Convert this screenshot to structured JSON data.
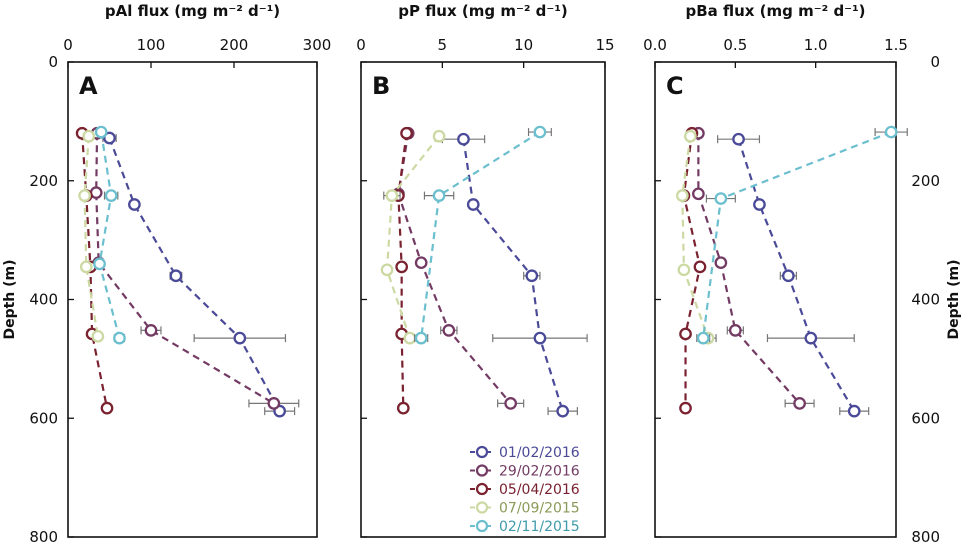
{
  "chart_data": {
    "type": "scatter",
    "y_axis": {
      "title": "Depth (m)",
      "ylim": [
        0,
        800
      ],
      "ticks": [
        0,
        200,
        400,
        600,
        800
      ],
      "tick_labels": [
        "0",
        "200",
        "400",
        "600",
        "800"
      ],
      "inverted": true
    },
    "panels": [
      {
        "letter": "A",
        "title": "pAl flux",
        "units": "(mg m⁻² d⁻¹)",
        "xlim": [
          0,
          300
        ],
        "x_ticks": [
          0,
          100,
          200,
          300
        ],
        "x_tick_labels": [
          "0",
          "100",
          "200",
          "300"
        ],
        "series": [
          {
            "name": "01/02/2016",
            "color": "#4a4a98",
            "points": [
              {
                "x": 50,
                "y": 128,
                "err": 8
              },
              {
                "x": 80,
                "y": 240,
                "err": 0
              },
              {
                "x": 130,
                "y": 360,
                "err": 7
              },
              {
                "x": 207,
                "y": 465,
                "err": 55
              },
              {
                "x": 255,
                "y": 588,
                "err": 18
              }
            ]
          },
          {
            "name": "29/02/2016",
            "color": "#733a63",
            "points": [
              {
                "x": 35,
                "y": 120,
                "err": 0
              },
              {
                "x": 34,
                "y": 220,
                "err": 0
              },
              {
                "x": 37,
                "y": 338,
                "err": 0
              },
              {
                "x": 100,
                "y": 452,
                "err": 12
              },
              {
                "x": 248,
                "y": 575,
                "err": 30
              }
            ]
          },
          {
            "name": "05/04/2016",
            "color": "#7a2230",
            "points": [
              {
                "x": 17,
                "y": 120,
                "err": 0
              },
              {
                "x": 22,
                "y": 225,
                "err": 0
              },
              {
                "x": 27,
                "y": 345,
                "err": 0
              },
              {
                "x": 29,
                "y": 458,
                "err": 0
              },
              {
                "x": 47,
                "y": 583,
                "err": 0
              }
            ]
          },
          {
            "name": "07/09/2015",
            "color": "#ccd9a3",
            "points": [
              {
                "x": 25,
                "y": 125,
                "err": 0
              },
              {
                "x": 20,
                "y": 225,
                "err": 0
              },
              {
                "x": 22,
                "y": 345,
                "err": 0
              },
              {
                "x": 36,
                "y": 462,
                "err": 5
              }
            ]
          },
          {
            "name": "02/11/2015",
            "color": "#6bbfce",
            "points": [
              {
                "x": 40,
                "y": 118,
                "err": 0
              },
              {
                "x": 52,
                "y": 225,
                "err": 8
              },
              {
                "x": 38,
                "y": 340,
                "err": 0
              },
              {
                "x": 62,
                "y": 465,
                "err": 6
              }
            ]
          }
        ]
      },
      {
        "letter": "B",
        "title": "pP flux",
        "units": "(mg m⁻² d⁻¹)",
        "xlim": [
          0,
          15
        ],
        "x_ticks": [
          0,
          5,
          10,
          15
        ],
        "x_tick_labels": [
          "0",
          "5",
          "10",
          "15"
        ],
        "series": [
          {
            "name": "01/02/2016",
            "color": "#4a4a98",
            "points": [
              {
                "x": 6.3,
                "y": 130,
                "err": 1.3
              },
              {
                "x": 6.9,
                "y": 240,
                "err": 0
              },
              {
                "x": 10.5,
                "y": 360,
                "err": 0.5
              },
              {
                "x": 11.0,
                "y": 465,
                "err": 2.9
              },
              {
                "x": 12.4,
                "y": 588,
                "err": 0.9
              }
            ]
          },
          {
            "name": "29/02/2016",
            "color": "#733a63",
            "points": [
              {
                "x": 2.9,
                "y": 120,
                "err": 0
              },
              {
                "x": 2.3,
                "y": 222,
                "err": 0
              },
              {
                "x": 3.7,
                "y": 338,
                "err": 0
              },
              {
                "x": 5.4,
                "y": 452,
                "err": 0.5
              },
              {
                "x": 9.2,
                "y": 575,
                "err": 0.8
              }
            ]
          },
          {
            "name": "05/04/2016",
            "color": "#7a2230",
            "points": [
              {
                "x": 2.8,
                "y": 120,
                "err": 0
              },
              {
                "x": 2.3,
                "y": 225,
                "err": 0
              },
              {
                "x": 2.5,
                "y": 345,
                "err": 0
              },
              {
                "x": 2.5,
                "y": 458,
                "err": 0
              },
              {
                "x": 2.6,
                "y": 583,
                "err": 0
              }
            ]
          },
          {
            "name": "07/09/2015",
            "color": "#ccd9a3",
            "points": [
              {
                "x": 4.8,
                "y": 125,
                "err": 0
              },
              {
                "x": 1.9,
                "y": 225,
                "err": 0.5
              },
              {
                "x": 1.6,
                "y": 350,
                "err": 0
              },
              {
                "x": 3.0,
                "y": 465,
                "err": 0
              }
            ]
          },
          {
            "name": "02/11/2015",
            "color": "#6bbfce",
            "points": [
              {
                "x": 11.0,
                "y": 118,
                "err": 0.7
              },
              {
                "x": 4.8,
                "y": 225,
                "err": 0.9
              },
              {
                "x": 3.7,
                "y": 465,
                "err": 0.4
              }
            ]
          }
        ]
      },
      {
        "letter": "C",
        "title": "pBa flux",
        "units": "(mg m⁻² d⁻¹)",
        "xlim": [
          0.0,
          1.5
        ],
        "x_ticks": [
          0.0,
          0.5,
          1.0,
          1.5
        ],
        "x_tick_labels": [
          "0.0",
          "0.5",
          "1.0",
          "1.5"
        ],
        "series": [
          {
            "name": "01/02/2016",
            "color": "#4a4a98",
            "points": [
              {
                "x": 0.52,
                "y": 130,
                "err": 0.13
              },
              {
                "x": 0.65,
                "y": 240,
                "err": 0
              },
              {
                "x": 0.83,
                "y": 360,
                "err": 0.05
              },
              {
                "x": 0.97,
                "y": 465,
                "err": 0.27
              },
              {
                "x": 1.24,
                "y": 588,
                "err": 0.09
              }
            ]
          },
          {
            "name": "29/02/2016",
            "color": "#733a63",
            "points": [
              {
                "x": 0.27,
                "y": 120,
                "err": 0
              },
              {
                "x": 0.27,
                "y": 222,
                "err": 0
              },
              {
                "x": 0.41,
                "y": 338,
                "err": 0
              },
              {
                "x": 0.5,
                "y": 452,
                "err": 0.05
              },
              {
                "x": 0.9,
                "y": 575,
                "err": 0.09
              }
            ]
          },
          {
            "name": "05/04/2016",
            "color": "#7a2230",
            "points": [
              {
                "x": 0.23,
                "y": 120,
                "err": 0
              },
              {
                "x": 0.18,
                "y": 225,
                "err": 0
              },
              {
                "x": 0.28,
                "y": 345,
                "err": 0
              },
              {
                "x": 0.19,
                "y": 458,
                "err": 0
              },
              {
                "x": 0.19,
                "y": 583,
                "err": 0
              }
            ]
          },
          {
            "name": "07/09/2015",
            "color": "#ccd9a3",
            "points": [
              {
                "x": 0.22,
                "y": 125,
                "err": 0
              },
              {
                "x": 0.17,
                "y": 225,
                "err": 0
              },
              {
                "x": 0.18,
                "y": 350,
                "err": 0
              },
              {
                "x": 0.33,
                "y": 465,
                "err": 0.05
              }
            ]
          },
          {
            "name": "02/11/2015",
            "color": "#6bbfce",
            "points": [
              {
                "x": 1.47,
                "y": 118,
                "err": 0.1
              },
              {
                "x": 0.41,
                "y": 230,
                "err": 0.09
              },
              {
                "x": 0.3,
                "y": 465,
                "err": 0.04
              }
            ]
          }
        ]
      }
    ],
    "legend": {
      "placement": "bottom-right of panel B",
      "entries": [
        {
          "label": "01/02/2016",
          "color": "#4a4a98",
          "text_color": "#4a4a98"
        },
        {
          "label": "29/02/2016",
          "color": "#733a63",
          "text_color": "#733a63"
        },
        {
          "label": "05/04/2016",
          "color": "#7a2230",
          "text_color": "#7a2230"
        },
        {
          "label": "07/09/2015",
          "color": "#ccd9a3",
          "text_color": "#8a9a58"
        },
        {
          "label": "02/11/2015",
          "color": "#6bbfce",
          "text_color": "#3f9aab"
        }
      ]
    },
    "errorbar_color": "#777777"
  }
}
